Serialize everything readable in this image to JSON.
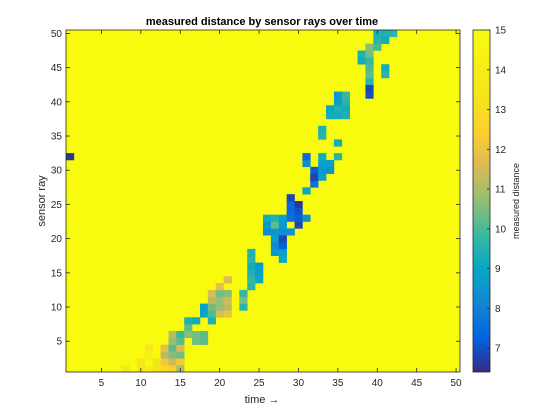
{
  "chart_data": {
    "type": "heatmap",
    "title": "measured distance by sensor rays over time",
    "xlabel": "time →",
    "ylabel": "sensor ray",
    "colorbar_label": "measured distance",
    "xlim": [
      0.5,
      50.5
    ],
    "ylim": [
      0.5,
      50.5
    ],
    "clim": [
      6.4,
      15
    ],
    "x_ticks": [
      5,
      10,
      15,
      20,
      25,
      30,
      35,
      40,
      45,
      50
    ],
    "y_ticks": [
      5,
      10,
      15,
      20,
      25,
      30,
      35,
      40,
      45,
      50
    ],
    "colorbar_ticks": [
      7,
      8,
      9,
      10,
      11,
      12,
      13,
      14,
      15
    ],
    "background_value": 15,
    "colormap": "parula",
    "cells": [
      {
        "x": 1,
        "y": 32,
        "value": 6.6
      },
      {
        "x": 8,
        "y": 1,
        "value": 13.6
      },
      {
        "x": 10,
        "y": 1,
        "value": 13.6
      },
      {
        "x": 10,
        "y": 2,
        "value": 13.4
      },
      {
        "x": 11,
        "y": 1,
        "value": 14
      },
      {
        "x": 11,
        "y": 4,
        "value": 13.6
      },
      {
        "x": 11,
        "y": 3,
        "value": 14.2
      },
      {
        "x": 12,
        "y": 1,
        "value": 13.4
      },
      {
        "x": 12,
        "y": 2,
        "value": 13.4
      },
      {
        "x": 13,
        "y": 1,
        "value": 12.8
      },
      {
        "x": 13,
        "y": 2,
        "value": 12.2
      },
      {
        "x": 13,
        "y": 3,
        "value": 11.2
      },
      {
        "x": 13,
        "y": 4,
        "value": 11.8
      },
      {
        "x": 14,
        "y": 1,
        "value": 12.4
      },
      {
        "x": 14,
        "y": 2,
        "value": 11.4
      },
      {
        "x": 14,
        "y": 3,
        "value": 10.6
      },
      {
        "x": 14,
        "y": 4,
        "value": 10.2
      },
      {
        "x": 14,
        "y": 5,
        "value": 10.8
      },
      {
        "x": 14,
        "y": 6,
        "value": 11.2
      },
      {
        "x": 15,
        "y": 1,
        "value": 11
      },
      {
        "x": 15,
        "y": 2,
        "value": 12.2
      },
      {
        "x": 15,
        "y": 3,
        "value": 10.4
      },
      {
        "x": 15,
        "y": 4,
        "value": 11.6
      },
      {
        "x": 15,
        "y": 5,
        "value": 10.2
      },
      {
        "x": 15,
        "y": 6,
        "value": 9.8
      },
      {
        "x": 16,
        "y": 6,
        "value": 10.6
      },
      {
        "x": 16,
        "y": 7,
        "value": 10.2
      },
      {
        "x": 16,
        "y": 8,
        "value": 9.4
      },
      {
        "x": 17,
        "y": 5,
        "value": 10.4
      },
      {
        "x": 17,
        "y": 6,
        "value": 10.4
      },
      {
        "x": 17,
        "y": 8,
        "value": 9.2
      },
      {
        "x": 18,
        "y": 5,
        "value": 10.2
      },
      {
        "x": 18,
        "y": 6,
        "value": 10.2
      },
      {
        "x": 18,
        "y": 9,
        "value": 9
      },
      {
        "x": 18,
        "y": 10,
        "value": 8.8
      },
      {
        "x": 19,
        "y": 8,
        "value": 9.4
      },
      {
        "x": 19,
        "y": 9,
        "value": 10
      },
      {
        "x": 19,
        "y": 10,
        "value": 10.4
      },
      {
        "x": 19,
        "y": 11,
        "value": 11.2
      },
      {
        "x": 19,
        "y": 12,
        "value": 11.6
      },
      {
        "x": 20,
        "y": 9,
        "value": 11.6
      },
      {
        "x": 20,
        "y": 10,
        "value": 10.8
      },
      {
        "x": 20,
        "y": 11,
        "value": 10.8
      },
      {
        "x": 20,
        "y": 12,
        "value": 10.4
      },
      {
        "x": 20,
        "y": 13,
        "value": 11.8
      },
      {
        "x": 21,
        "y": 9,
        "value": 12
      },
      {
        "x": 21,
        "y": 10,
        "value": 11.2
      },
      {
        "x": 21,
        "y": 11,
        "value": 11.4
      },
      {
        "x": 21,
        "y": 12,
        "value": 10.6
      },
      {
        "x": 21,
        "y": 14,
        "value": 11.6
      },
      {
        "x": 23,
        "y": 10,
        "value": 9.6
      },
      {
        "x": 23,
        "y": 11,
        "value": 10.4
      },
      {
        "x": 23,
        "y": 12,
        "value": 9.8
      },
      {
        "x": 24,
        "y": 13,
        "value": 9.6
      },
      {
        "x": 24,
        "y": 14,
        "value": 9.8
      },
      {
        "x": 24,
        "y": 15,
        "value": 9.4
      },
      {
        "x": 24,
        "y": 16,
        "value": 9.2
      },
      {
        "x": 24,
        "y": 17,
        "value": 9.6
      },
      {
        "x": 24,
        "y": 18,
        "value": 9.4
      },
      {
        "x": 25,
        "y": 14,
        "value": 9
      },
      {
        "x": 25,
        "y": 15,
        "value": 8.8
      },
      {
        "x": 25,
        "y": 16,
        "value": 8.6
      },
      {
        "x": 26,
        "y": 21,
        "value": 8.2
      },
      {
        "x": 26,
        "y": 22,
        "value": 8.6
      },
      {
        "x": 26,
        "y": 23,
        "value": 9.2
      },
      {
        "x": 27,
        "y": 18,
        "value": 8.6
      },
      {
        "x": 27,
        "y": 19,
        "value": 8.2
      },
      {
        "x": 27,
        "y": 20,
        "value": 8.8
      },
      {
        "x": 27,
        "y": 21,
        "value": 8.6
      },
      {
        "x": 27,
        "y": 22,
        "value": 10.2
      },
      {
        "x": 27,
        "y": 23,
        "value": 9.4
      },
      {
        "x": 28,
        "y": 17,
        "value": 9
      },
      {
        "x": 28,
        "y": 18,
        "value": 8.8
      },
      {
        "x": 28,
        "y": 19,
        "value": 7.2
      },
      {
        "x": 28,
        "y": 20,
        "value": 6.8
      },
      {
        "x": 28,
        "y": 21,
        "value": 8.4
      },
      {
        "x": 28,
        "y": 22,
        "value": 8.6
      },
      {
        "x": 28,
        "y": 23,
        "value": 8.8
      },
      {
        "x": 29,
        "y": 21,
        "value": 8.4
      },
      {
        "x": 29,
        "y": 23,
        "value": 7.6
      },
      {
        "x": 29,
        "y": 24,
        "value": 7.4
      },
      {
        "x": 29,
        "y": 25,
        "value": 7.4
      },
      {
        "x": 29,
        "y": 26,
        "value": 6.8
      },
      {
        "x": 30,
        "y": 22,
        "value": 6.8
      },
      {
        "x": 30,
        "y": 23,
        "value": 7.2
      },
      {
        "x": 30,
        "y": 24,
        "value": 7
      },
      {
        "x": 30,
        "y": 25,
        "value": 6.6
      },
      {
        "x": 31,
        "y": 23,
        "value": 8.4
      },
      {
        "x": 31,
        "y": 27,
        "value": 9
      },
      {
        "x": 31,
        "y": 31,
        "value": 8.4
      },
      {
        "x": 31,
        "y": 32,
        "value": 7.4
      },
      {
        "x": 32,
        "y": 28,
        "value": 7.6
      },
      {
        "x": 32,
        "y": 29,
        "value": 6.8
      },
      {
        "x": 32,
        "y": 30,
        "value": 7.2
      },
      {
        "x": 32,
        "y": 29,
        "value": 6.8
      },
      {
        "x": 33,
        "y": 29,
        "value": 8.8
      },
      {
        "x": 33,
        "y": 30,
        "value": 8.6
      },
      {
        "x": 33,
        "y": 31,
        "value": 8.8
      },
      {
        "x": 33,
        "y": 32,
        "value": 9.2
      },
      {
        "x": 33,
        "y": 35,
        "value": 9.6
      },
      {
        "x": 33,
        "y": 36,
        "value": 9.4
      },
      {
        "x": 34,
        "y": 30,
        "value": 8.4
      },
      {
        "x": 34,
        "y": 31,
        "value": 8.8
      },
      {
        "x": 34,
        "y": 38,
        "value": 9.2
      },
      {
        "x": 34,
        "y": 39,
        "value": 9
      },
      {
        "x": 35,
        "y": 32,
        "value": 9.6
      },
      {
        "x": 35,
        "y": 34,
        "value": 9.2
      },
      {
        "x": 35,
        "y": 38,
        "value": 9.2
      },
      {
        "x": 35,
        "y": 39,
        "value": 9.4
      },
      {
        "x": 35,
        "y": 40,
        "value": 8.8
      },
      {
        "x": 35,
        "y": 41,
        "value": 8.6
      },
      {
        "x": 36,
        "y": 38,
        "value": 9.4
      },
      {
        "x": 36,
        "y": 39,
        "value": 9.2
      },
      {
        "x": 36,
        "y": 40,
        "value": 9.6
      },
      {
        "x": 36,
        "y": 41,
        "value": 9.8
      },
      {
        "x": 38,
        "y": 46,
        "value": 9.2
      },
      {
        "x": 38,
        "y": 47,
        "value": 9.4
      },
      {
        "x": 39,
        "y": 41,
        "value": 7
      },
      {
        "x": 39,
        "y": 42,
        "value": 6.8
      },
      {
        "x": 39,
        "y": 43,
        "value": 9.6
      },
      {
        "x": 39,
        "y": 44,
        "value": 10.2
      },
      {
        "x": 39,
        "y": 45,
        "value": 10
      },
      {
        "x": 39,
        "y": 46,
        "value": 9.8
      },
      {
        "x": 39,
        "y": 47,
        "value": 10.4
      },
      {
        "x": 39,
        "y": 48,
        "value": 10.6
      },
      {
        "x": 40,
        "y": 48,
        "value": 10
      },
      {
        "x": 40,
        "y": 49,
        "value": 9.6
      },
      {
        "x": 40,
        "y": 50,
        "value": 9.4
      },
      {
        "x": 41,
        "y": 44,
        "value": 9.6
      },
      {
        "x": 41,
        "y": 45,
        "value": 9.2
      },
      {
        "x": 41,
        "y": 49,
        "value": 9.2
      },
      {
        "x": 41,
        "y": 50,
        "value": 9.4
      },
      {
        "x": 42,
        "y": 50,
        "value": 9.6
      }
    ]
  }
}
